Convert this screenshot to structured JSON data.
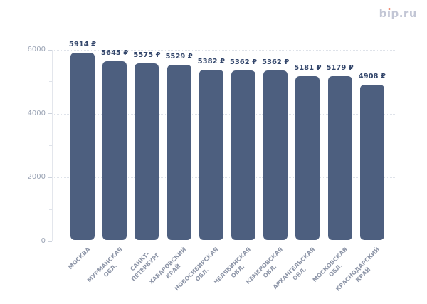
{
  "logo": {
    "text": "bip.ru",
    "part_b": "b",
    "part_i_dotless": "ı",
    "part_rest": "p.ru",
    "text_color": "#c2c6d5",
    "dot_color": "#ed8064"
  },
  "chart_data": {
    "type": "bar",
    "title": "",
    "categories": [
      "МОСКВА",
      "МУРМАНСКАЯ\nОБЛ.",
      "САНКТ-\nПЕТЕРБУРГ",
      "ХАБАРОВСКИЙ\nКРАЙ",
      "НОВОСИБИРСКАЯ\nОБЛ.",
      "ЧЕЛЯБИНСКАЯ\nОБЛ.",
      "КЕМЕРОВСКАЯ\nОБЛ.",
      "АРХАНГЕЛЬСКАЯ\nОБЛ.",
      "МОСКОВСКАЯ\nОБЛ.",
      "КРАСНОДАРСКИЙ\nКРАЙ"
    ],
    "values": [
      5914,
      5645,
      5575,
      5529,
      5382,
      5362,
      5362,
      5181,
      5179,
      4908
    ],
    "value_labels": [
      "5914 ₽",
      "5645 ₽",
      "5575 ₽",
      "5529 ₽",
      "5382 ₽",
      "5362 ₽",
      "5362 ₽",
      "5181 ₽",
      "5179 ₽",
      "4908 ₽"
    ],
    "currency": "₽",
    "xlabel": "",
    "ylabel": "",
    "ylim": [
      0,
      6000
    ],
    "y_ticks": [
      0,
      2000,
      4000,
      6000
    ],
    "y_tick_labels": [
      "0",
      "2000",
      "4000",
      "6000"
    ],
    "y_minor_ticks": [
      1000,
      3000,
      5000
    ],
    "grid": "horizontal-dotted",
    "legend": "none",
    "bar_color": "#4d5f7f",
    "value_label_color": "#33466b",
    "y_label_color": "#9aa3b4",
    "x_label_color": "#8e96a8"
  }
}
